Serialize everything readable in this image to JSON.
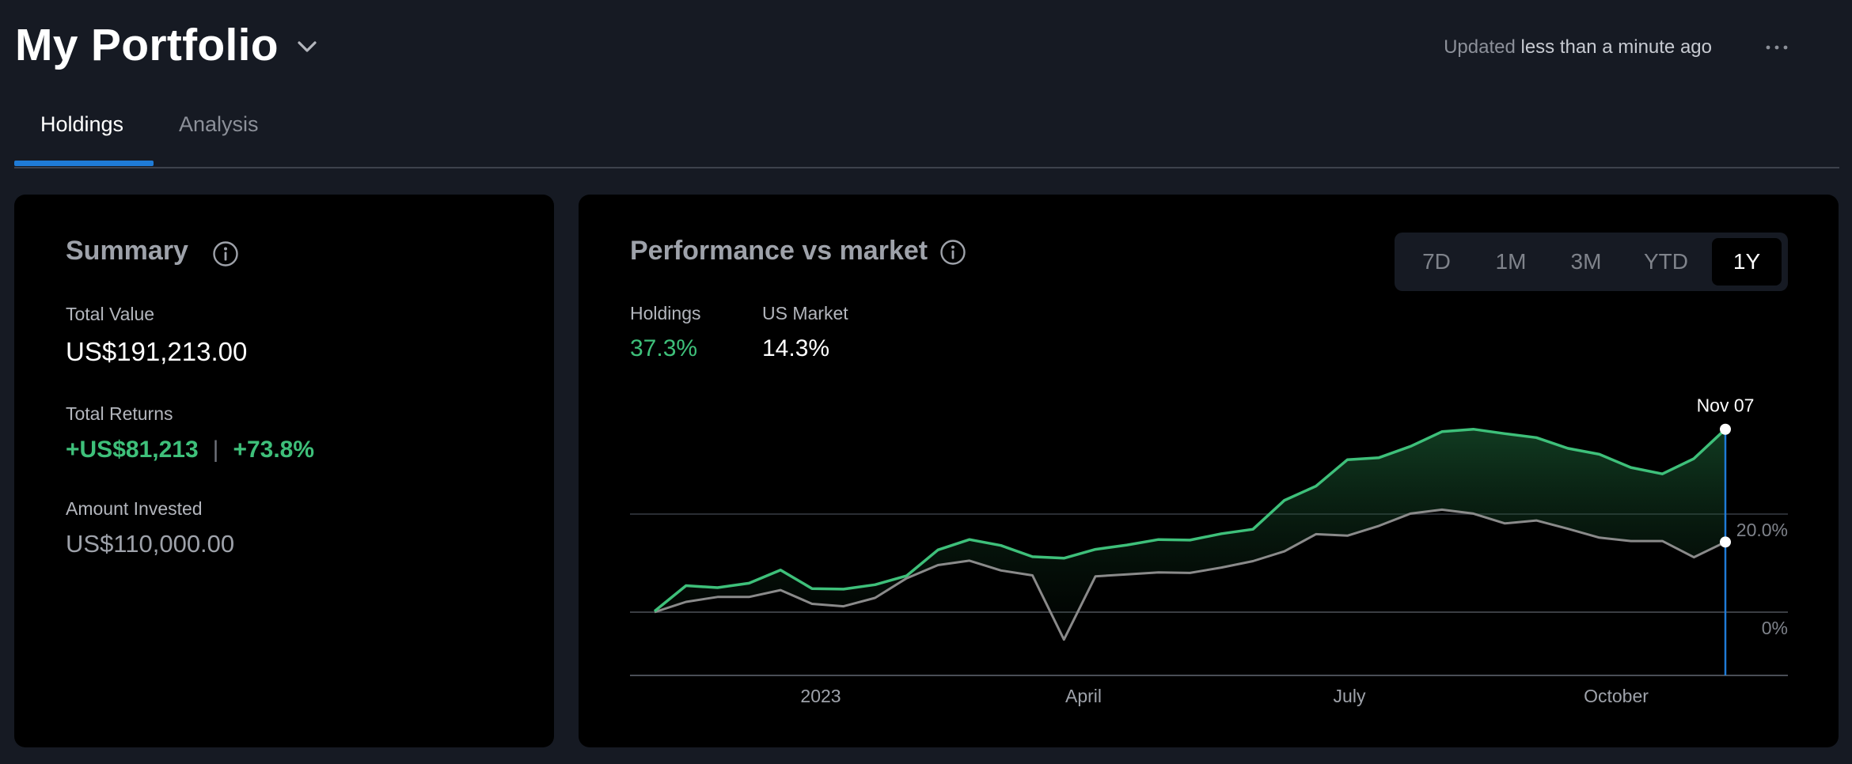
{
  "header": {
    "title": "My Portfolio",
    "updated_prefix": "Updated",
    "updated_value": "less than a minute ago",
    "more_icon": "ellipsis-icon",
    "chevron_icon": "chevron-down-icon"
  },
  "tabs": [
    {
      "label": "Holdings",
      "active": true
    },
    {
      "label": "Analysis",
      "active": false
    }
  ],
  "summary": {
    "title": "Summary",
    "total_value_label": "Total Value",
    "total_value": "US$191,213.00",
    "total_returns_label": "Total Returns",
    "total_returns_amount": "+US$81,213",
    "total_returns_separator": "|",
    "total_returns_percent": "+73.8%",
    "amount_invested_label": "Amount Invested",
    "amount_invested": "US$110,000.00"
  },
  "performance": {
    "title": "Performance vs market",
    "ranges": [
      "7D",
      "1M",
      "3M",
      "YTD",
      "1Y"
    ],
    "active_range": "1Y",
    "holdings_label": "Holdings",
    "holdings_value": "37.3%",
    "market_label": "US Market",
    "market_value": "14.3%",
    "cursor_label": "Nov 07"
  },
  "colors": {
    "accent": "#1f7bd6",
    "positive": "#3ec07a",
    "market_line": "#8a8a8a"
  },
  "chart_data": {
    "type": "line",
    "x_tick_labels": [
      "2023",
      "April",
      "July",
      "October"
    ],
    "y_tick_labels": [
      "0%",
      "20.0%"
    ],
    "ylim": [
      -13,
      38
    ],
    "grid": true,
    "cursor_index": 34,
    "series": [
      {
        "name": "Holdings",
        "values": [
          0.2,
          5.4,
          5.0,
          5.9,
          8.6,
          4.8,
          4.7,
          5.6,
          7.4,
          12.7,
          14.8,
          13.6,
          11.3,
          11.0,
          12.8,
          13.7,
          14.8,
          14.7,
          16.0,
          16.9,
          22.8,
          25.7,
          31.1,
          31.5,
          33.8,
          36.8,
          37.3,
          36.4,
          35.6,
          33.4,
          32.2,
          29.5,
          28.2,
          31.3,
          37.3
        ]
      },
      {
        "name": "US Market",
        "values": [
          0.0,
          2.1,
          3.1,
          3.1,
          4.5,
          1.7,
          1.2,
          2.9,
          6.9,
          9.6,
          10.5,
          8.5,
          7.5,
          -5.6,
          7.3,
          7.7,
          8.1,
          8.0,
          9.1,
          10.4,
          12.4,
          15.9,
          15.6,
          17.6,
          20.1,
          20.9,
          20.1,
          18.1,
          18.7,
          17.0,
          15.2,
          14.5,
          14.5,
          11.2,
          14.3
        ]
      }
    ]
  }
}
